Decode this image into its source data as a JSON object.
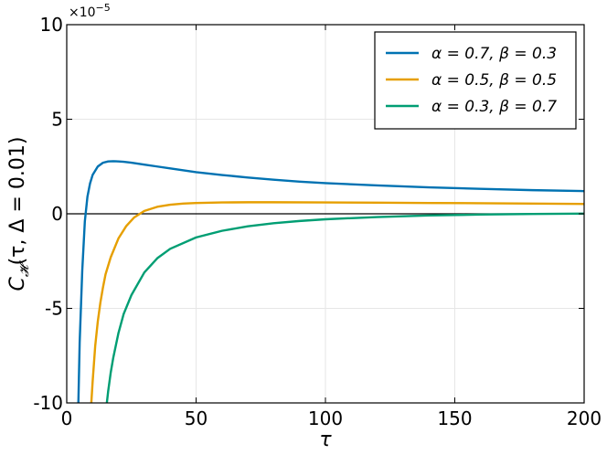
{
  "chart_data": {
    "type": "line",
    "title": "",
    "xlabel": "τ",
    "ylabel": "C_H(τ, Δ = 0.01)",
    "ylabel_parts": {
      "symbol": "C",
      "subscript": "𝓗",
      "args": "(τ, Δ = 0.01)"
    },
    "y_scale_note": "×10⁻⁵",
    "y_scale_parts": {
      "base": "×10",
      "exponent": "−5"
    },
    "xlim": [
      0,
      200
    ],
    "ylim": [
      -10,
      10
    ],
    "y_units_multiplier": 1e-05,
    "x_ticks": [
      0,
      50,
      100,
      150,
      200
    ],
    "x_tick_labels": [
      "0",
      "50",
      "100",
      "150",
      "200"
    ],
    "y_ticks": [
      -10,
      -5,
      0,
      5,
      10
    ],
    "y_tick_labels": [
      "-10",
      "-5",
      "0",
      "5",
      "10"
    ],
    "grid": true,
    "zero_line": true,
    "legend_position": "top-right",
    "series": [
      {
        "name": "α = 0.7, β = 0.3",
        "color": "#0072b2",
        "x": [
          4.5,
          5,
          6,
          7,
          8,
          9,
          10,
          12,
          14,
          16,
          18,
          20,
          22,
          25,
          30,
          35,
          40,
          50,
          60,
          70,
          80,
          90,
          100,
          120,
          140,
          160,
          180,
          200
        ],
        "y": [
          -10,
          -6.8,
          -3.0,
          -0.4,
          0.9,
          1.6,
          2.05,
          2.5,
          2.7,
          2.77,
          2.78,
          2.77,
          2.75,
          2.7,
          2.6,
          2.5,
          2.4,
          2.2,
          2.05,
          1.92,
          1.8,
          1.7,
          1.62,
          1.5,
          1.4,
          1.32,
          1.25,
          1.2
        ]
      },
      {
        "name": "α = 0.5, β = 0.5",
        "color": "#e69f00",
        "x": [
          9.5,
          10,
          11,
          12,
          13,
          14,
          15,
          17,
          20,
          23,
          26,
          30,
          35,
          40,
          45,
          50,
          60,
          70,
          80,
          100,
          120,
          140,
          160,
          180,
          200
        ],
        "y": [
          -10,
          -8.9,
          -7.0,
          -5.7,
          -4.7,
          -3.9,
          -3.2,
          -2.3,
          -1.3,
          -0.65,
          -0.2,
          0.15,
          0.37,
          0.48,
          0.54,
          0.57,
          0.6,
          0.61,
          0.61,
          0.6,
          0.59,
          0.57,
          0.56,
          0.54,
          0.52
        ]
      },
      {
        "name": "α = 0.3, β = 0.7",
        "color": "#009e73",
        "x": [
          15.5,
          16,
          17,
          18,
          20,
          22,
          25,
          30,
          35,
          40,
          50,
          60,
          70,
          80,
          90,
          100,
          120,
          140,
          160,
          180,
          200
        ],
        "y": [
          -10,
          -9.4,
          -8.4,
          -7.6,
          -6.3,
          -5.3,
          -4.3,
          -3.1,
          -2.35,
          -1.85,
          -1.25,
          -0.9,
          -0.66,
          -0.5,
          -0.38,
          -0.29,
          -0.17,
          -0.09,
          -0.04,
          -0.01,
          0.01
        ]
      }
    ]
  }
}
